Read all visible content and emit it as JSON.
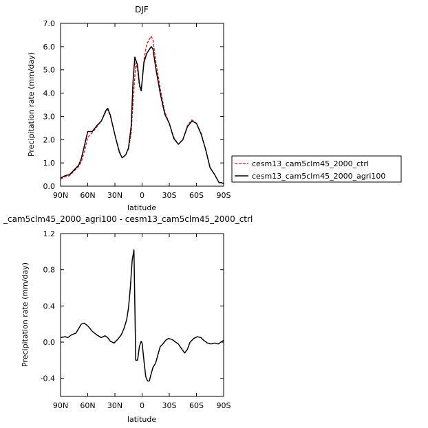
{
  "chart_data": [
    {
      "type": "line",
      "title": "DJF",
      "xlabel": "latitude",
      "ylabel": "Precipitation rate (mm/day)",
      "xlim": [
        90,
        -90
      ],
      "ylim": [
        0,
        7
      ],
      "x_ticks": [
        90,
        60,
        30,
        0,
        -30,
        -60,
        -90
      ],
      "x_tick_labels": [
        "90N",
        "60N",
        "30N",
        "0",
        "30S",
        "60S",
        "90S"
      ],
      "y_ticks": [
        0,
        1,
        2,
        3,
        4,
        5,
        6,
        7
      ],
      "y_tick_labels": [
        "0.0",
        "1.0",
        "2.0",
        "3.0",
        "4.0",
        "5.0",
        "6.0",
        "7.0"
      ],
      "legend_position": "right",
      "series": [
        {
          "name": "cesm13_cam5clm45_2000_ctrl",
          "color": "#dd1111",
          "dash": "dashed",
          "points": [
            [
              90,
              0.3
            ],
            [
              85,
              0.4
            ],
            [
              80,
              0.45
            ],
            [
              75,
              0.65
            ],
            [
              70,
              0.85
            ],
            [
              67,
              1.05
            ],
            [
              63,
              1.6
            ],
            [
              60,
              2.1
            ],
            [
              55,
              2.3
            ],
            [
              50,
              2.55
            ],
            [
              45,
              2.8
            ],
            [
              40,
              3.2
            ],
            [
              38,
              3.3
            ],
            [
              35,
              3.0
            ],
            [
              30,
              2.2
            ],
            [
              25,
              1.5
            ],
            [
              22,
              1.2
            ],
            [
              18,
              1.35
            ],
            [
              15,
              1.6
            ],
            [
              12,
              2.3
            ],
            [
              10,
              3.6
            ],
            [
              7,
              5.3
            ],
            [
              5,
              5.0
            ],
            [
              3,
              4.3
            ],
            [
              1,
              4.1
            ],
            [
              -2,
              5.4
            ],
            [
              -5,
              6.1
            ],
            [
              -10,
              6.45
            ],
            [
              -12,
              6.3
            ],
            [
              -15,
              5.4
            ],
            [
              -20,
              4.2
            ],
            [
              -25,
              3.2
            ],
            [
              -30,
              2.7
            ],
            [
              -35,
              2.1
            ],
            [
              -40,
              1.8
            ],
            [
              -45,
              2.0
            ],
            [
              -50,
              2.6
            ],
            [
              -55,
              2.85
            ],
            [
              -60,
              2.7
            ],
            [
              -65,
              2.3
            ],
            [
              -70,
              1.6
            ],
            [
              -75,
              0.8
            ],
            [
              -80,
              0.5
            ],
            [
              -85,
              0.15
            ],
            [
              -88,
              0.15
            ],
            [
              -90,
              0.1
            ]
          ]
        },
        {
          "name": "cesm13_cam5clm45_2000_agri100",
          "color": "#000000",
          "dash": "solid",
          "points": [
            [
              90,
              0.35
            ],
            [
              85,
              0.45
            ],
            [
              80,
              0.5
            ],
            [
              75,
              0.7
            ],
            [
              70,
              0.9
            ],
            [
              67,
              1.2
            ],
            [
              63,
              1.85
            ],
            [
              60,
              2.35
            ],
            [
              55,
              2.35
            ],
            [
              50,
              2.6
            ],
            [
              45,
              2.8
            ],
            [
              40,
              3.25
            ],
            [
              38,
              3.35
            ],
            [
              35,
              3.05
            ],
            [
              30,
              2.2
            ],
            [
              25,
              1.45
            ],
            [
              22,
              1.22
            ],
            [
              18,
              1.35
            ],
            [
              15,
              1.65
            ],
            [
              12,
              2.6
            ],
            [
              10,
              4.5
            ],
            [
              8,
              5.55
            ],
            [
              5,
              5.2
            ],
            [
              3,
              4.4
            ],
            [
              1,
              4.1
            ],
            [
              -2,
              5.3
            ],
            [
              -5,
              5.7
            ],
            [
              -10,
              6.0
            ],
            [
              -12,
              5.9
            ],
            [
              -15,
              5.1
            ],
            [
              -20,
              4.0
            ],
            [
              -25,
              3.1
            ],
            [
              -30,
              2.7
            ],
            [
              -35,
              2.05
            ],
            [
              -40,
              1.8
            ],
            [
              -45,
              2.0
            ],
            [
              -50,
              2.55
            ],
            [
              -55,
              2.8
            ],
            [
              -60,
              2.7
            ],
            [
              -65,
              2.25
            ],
            [
              -70,
              1.6
            ],
            [
              -75,
              0.8
            ],
            [
              -80,
              0.5
            ],
            [
              -85,
              0.15
            ],
            [
              -88,
              0.15
            ],
            [
              -90,
              0.1
            ]
          ]
        }
      ]
    },
    {
      "type": "line",
      "title": "_cam5clm45_2000_agri100 - cesm13_cam5clm45_2000_ctrl",
      "xlabel": "latitude",
      "ylabel": "Precipitation rate (mm/day)",
      "xlim": [
        90,
        -90
      ],
      "ylim": [
        -0.6,
        1.2
      ],
      "x_ticks": [
        90,
        60,
        30,
        0,
        -30,
        -60,
        -90
      ],
      "x_tick_labels": [
        "90N",
        "60N",
        "30N",
        "0",
        "30S",
        "60S",
        "90S"
      ],
      "y_ticks": [
        -0.4,
        0,
        0.4,
        0.8,
        1.2
      ],
      "y_tick_labels": [
        "-0.4",
        "0.0",
        "0.4",
        "0.8",
        "1.2"
      ],
      "series": [
        {
          "color": "#000000",
          "dash": "solid",
          "points": [
            [
              90,
              0.05
            ],
            [
              85,
              0.06
            ],
            [
              82,
              0.05
            ],
            [
              78,
              0.08
            ],
            [
              73,
              0.1
            ],
            [
              70,
              0.15
            ],
            [
              67,
              0.2
            ],
            [
              64,
              0.21
            ],
            [
              60,
              0.18
            ],
            [
              55,
              0.12
            ],
            [
              50,
              0.08
            ],
            [
              45,
              0.05
            ],
            [
              41,
              0.07
            ],
            [
              38,
              0.05
            ],
            [
              35,
              0.01
            ],
            [
              31,
              -0.01
            ],
            [
              27,
              0.03
            ],
            [
              23,
              0.08
            ],
            [
              20,
              0.15
            ],
            [
              17,
              0.25
            ],
            [
              15,
              0.38
            ],
            [
              13,
              0.6
            ],
            [
              11,
              0.9
            ],
            [
              9,
              1.02
            ],
            [
              7,
              -0.2
            ],
            [
              5,
              -0.2
            ],
            [
              3,
              -0.05
            ],
            [
              1,
              0.01
            ],
            [
              0,
              -0.01
            ],
            [
              -2,
              -0.2
            ],
            [
              -4,
              -0.38
            ],
            [
              -6,
              -0.43
            ],
            [
              -8,
              -0.43
            ],
            [
              -10,
              -0.35
            ],
            [
              -12,
              -0.28
            ],
            [
              -15,
              -0.23
            ],
            [
              -18,
              -0.12
            ],
            [
              -20,
              -0.05
            ],
            [
              -23,
              -0.02
            ],
            [
              -26,
              0.02
            ],
            [
              -29,
              0.04
            ],
            [
              -33,
              0.03
            ],
            [
              -37,
              0.0
            ],
            [
              -40,
              -0.02
            ],
            [
              -44,
              -0.08
            ],
            [
              -47,
              -0.12
            ],
            [
              -50,
              -0.08
            ],
            [
              -53,
              0.0
            ],
            [
              -57,
              0.04
            ],
            [
              -61,
              0.06
            ],
            [
              -65,
              0.05
            ],
            [
              -68,
              0.02
            ],
            [
              -72,
              -0.01
            ],
            [
              -76,
              -0.02
            ],
            [
              -80,
              -0.01
            ],
            [
              -84,
              -0.02
            ],
            [
              -87,
              0.0
            ],
            [
              -90,
              0.02
            ]
          ]
        }
      ]
    }
  ]
}
